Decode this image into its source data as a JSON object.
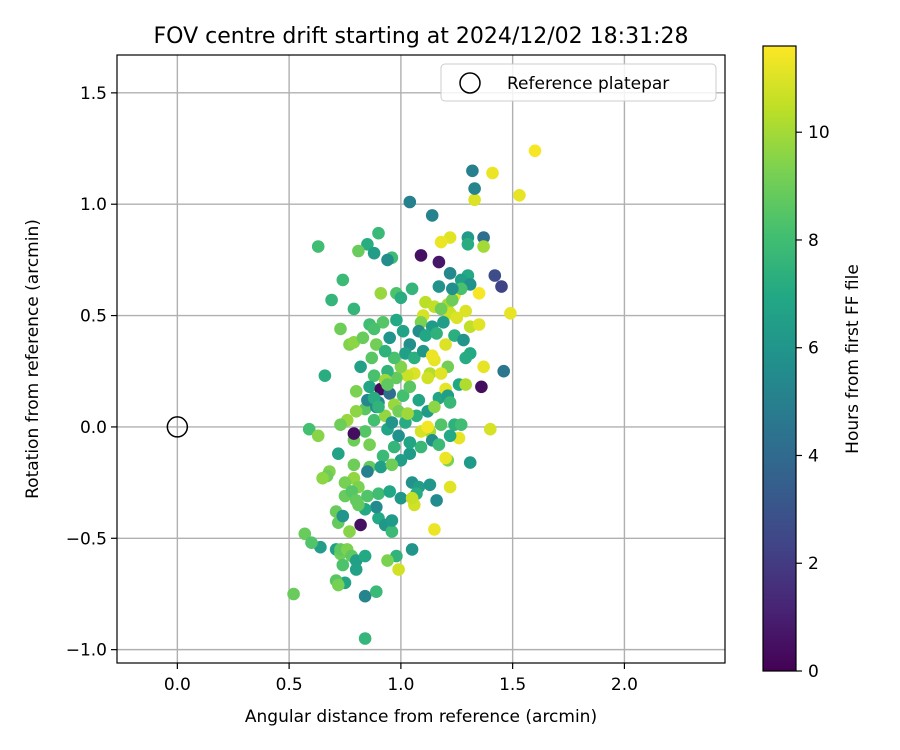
{
  "chart_data": {
    "type": "scatter",
    "title": "FOV centre drift starting at 2024/12/02 18:31:28",
    "xlabel": "Angular distance from reference (arcmin)",
    "ylabel": "Rotation from reference (arcmin)",
    "xlim": [
      -0.27,
      2.45
    ],
    "ylim": [
      -1.06,
      1.67
    ],
    "xticks": [
      0.0,
      0.5,
      1.0,
      1.5,
      2.0
    ],
    "xtick_labels": [
      "0.0",
      "0.5",
      "1.0",
      "1.5",
      "2.0"
    ],
    "yticks": [
      -1.0,
      -0.5,
      0.0,
      0.5,
      1.0,
      1.5
    ],
    "ytick_labels": [
      "−1.0",
      "−0.5",
      "0.0",
      "0.5",
      "1.0",
      "1.5"
    ],
    "grid": true,
    "legend": {
      "placement": "top-right",
      "entries": [
        "Reference platepar"
      ]
    },
    "reference_point": {
      "x": 0.0,
      "y": 0.0,
      "label": "Reference platepar"
    },
    "colorbar": {
      "label": "Hours from first FF file",
      "colormap": "viridis",
      "range": [
        0,
        11.6
      ],
      "ticks": [
        0,
        2,
        4,
        6,
        8,
        10
      ],
      "tick_labels": [
        "0",
        "2",
        "4",
        "6",
        "8",
        "10"
      ]
    },
    "series": [
      {
        "points": [
          [
            1.6,
            1.24,
            11.5
          ],
          [
            1.41,
            1.14,
            11.3
          ],
          [
            1.53,
            1.04,
            11.2
          ],
          [
            1.33,
            1.02,
            11.0
          ],
          [
            1.32,
            1.15,
            5.0
          ],
          [
            1.33,
            1.07,
            5.2
          ],
          [
            1.04,
            1.01,
            5.0
          ],
          [
            1.14,
            0.95,
            5.1
          ],
          [
            0.9,
            0.87,
            7.8
          ],
          [
            0.63,
            0.81,
            8.0
          ],
          [
            0.85,
            0.82,
            7.2
          ],
          [
            0.88,
            0.78,
            6.4
          ],
          [
            0.96,
            0.76,
            7.9
          ],
          [
            0.94,
            0.75,
            5.6
          ],
          [
            1.09,
            0.77,
            0.5
          ],
          [
            1.17,
            0.74,
            0.7
          ],
          [
            1.22,
            0.85,
            11.1
          ],
          [
            1.18,
            0.83,
            11.3
          ],
          [
            1.3,
            0.85,
            6.3
          ],
          [
            1.3,
            0.82,
            7.2
          ],
          [
            1.37,
            0.85,
            4.2
          ],
          [
            1.37,
            0.81,
            10.0
          ],
          [
            0.81,
            0.79,
            8.9
          ],
          [
            1.42,
            0.68,
            2.7
          ],
          [
            1.45,
            0.63,
            2.3
          ],
          [
            0.74,
            0.66,
            7.8
          ],
          [
            1.3,
            0.68,
            7.0
          ],
          [
            1.22,
            0.69,
            5.4
          ],
          [
            1.27,
            0.66,
            6.5
          ],
          [
            1.31,
            0.64,
            5.8
          ],
          [
            1.05,
            0.62,
            7.6
          ],
          [
            0.98,
            0.6,
            8.3
          ],
          [
            0.91,
            0.6,
            9.8
          ],
          [
            1.0,
            0.58,
            7.2
          ],
          [
            1.11,
            0.56,
            10.4
          ],
          [
            1.15,
            0.54,
            10.5
          ],
          [
            1.21,
            0.55,
            10.0
          ],
          [
            1.24,
            0.59,
            11.3
          ],
          [
            1.35,
            0.6,
            11.5
          ],
          [
            1.49,
            0.51,
            11.2
          ],
          [
            1.29,
            0.52,
            11.0
          ],
          [
            1.22,
            0.51,
            10.7
          ],
          [
            1.18,
            0.53,
            9.0
          ],
          [
            1.1,
            0.5,
            10.9
          ],
          [
            1.09,
            0.47,
            9.3
          ],
          [
            1.14,
            0.45,
            6.3
          ],
          [
            1.08,
            0.43,
            5.6
          ],
          [
            1.01,
            0.43,
            6.7
          ],
          [
            0.98,
            0.48,
            7.0
          ],
          [
            0.92,
            0.47,
            8.5
          ],
          [
            0.86,
            0.46,
            8.0
          ],
          [
            0.79,
            0.53,
            7.6
          ],
          [
            0.73,
            0.44,
            9.0
          ],
          [
            0.69,
            0.57,
            7.6
          ],
          [
            0.77,
            0.37,
            9.4
          ],
          [
            0.79,
            0.38,
            9.6
          ],
          [
            0.83,
            0.4,
            8.9
          ],
          [
            0.88,
            0.44,
            8.2
          ],
          [
            0.89,
            0.37,
            9.1
          ],
          [
            0.95,
            0.4,
            6.0
          ],
          [
            1.04,
            0.37,
            5.7
          ],
          [
            1.02,
            0.33,
            6.5
          ],
          [
            1.06,
            0.31,
            7.3
          ],
          [
            1.1,
            0.34,
            6.1
          ],
          [
            1.2,
            0.37,
            11.0
          ],
          [
            1.24,
            0.41,
            7.3
          ],
          [
            1.28,
            0.39,
            6.0
          ],
          [
            1.31,
            0.45,
            10.5
          ],
          [
            1.35,
            0.46,
            11.1
          ],
          [
            1.31,
            0.33,
            7.0
          ],
          [
            1.29,
            0.31,
            7.1
          ],
          [
            1.21,
            0.27,
            9.1
          ],
          [
            1.15,
            0.3,
            11.2
          ],
          [
            1.14,
            0.32,
            11.3
          ],
          [
            1.13,
            0.24,
            10.3
          ],
          [
            1.18,
            0.24,
            11.1
          ],
          [
            1.12,
            0.22,
            10.8
          ],
          [
            1.06,
            0.24,
            11.0
          ],
          [
            1.03,
            0.23,
            10.7
          ],
          [
            0.98,
            0.22,
            8.8
          ],
          [
            0.94,
            0.25,
            7.5
          ],
          [
            0.88,
            0.23,
            8.2
          ],
          [
            0.82,
            0.27,
            6.6
          ],
          [
            0.86,
            0.18,
            6.8
          ],
          [
            0.91,
            0.17,
            0.3
          ],
          [
            0.95,
            0.15,
            4.2
          ],
          [
            0.9,
            0.11,
            5.5
          ],
          [
            0.84,
            0.08,
            8.6
          ],
          [
            0.8,
            0.16,
            9.3
          ],
          [
            0.8,
            0.07,
            9.6
          ],
          [
            0.76,
            0.03,
            9.8
          ],
          [
            0.73,
            0.01,
            9.0
          ],
          [
            0.66,
            0.23,
            7.2
          ],
          [
            0.59,
            -0.01,
            8.1
          ],
          [
            0.63,
            -0.04,
            9.5
          ],
          [
            0.79,
            -0.06,
            9.0
          ],
          [
            0.84,
            -0.02,
            8.5
          ],
          [
            0.88,
            0.03,
            8.1
          ],
          [
            0.94,
            -0.01,
            6.8
          ],
          [
            0.99,
            -0.04,
            5.8
          ],
          [
            1.02,
            0.02,
            7.1
          ],
          [
            1.07,
            0.05,
            7.3
          ],
          [
            1.12,
            0.07,
            6.3
          ],
          [
            1.17,
            0.13,
            6.8
          ],
          [
            1.2,
            0.17,
            11.2
          ],
          [
            1.21,
            0.14,
            6.4
          ],
          [
            1.26,
            0.19,
            6.9
          ],
          [
            1.29,
            0.19,
            10.2
          ],
          [
            1.37,
            0.27,
            11.2
          ],
          [
            1.36,
            0.18,
            0.4
          ],
          [
            1.46,
            0.25,
            4.6
          ],
          [
            1.4,
            -0.01,
            10.9
          ],
          [
            1.26,
            -0.05,
            11.2
          ],
          [
            1.24,
            0.01,
            7.4
          ],
          [
            1.18,
            0.01,
            8.4
          ],
          [
            1.13,
            -0.02,
            10.1
          ],
          [
            1.14,
            -0.06,
            5.6
          ],
          [
            1.09,
            -0.09,
            7.7
          ],
          [
            1.04,
            -0.12,
            6.3
          ],
          [
            1.0,
            -0.15,
            6.4
          ],
          [
            0.97,
            -0.09,
            7.6
          ],
          [
            0.92,
            -0.13,
            7.8
          ],
          [
            0.86,
            -0.18,
            8.8
          ],
          [
            0.79,
            -0.17,
            9.0
          ],
          [
            0.72,
            -0.12,
            6.7
          ],
          [
            0.68,
            -0.2,
            9.4
          ],
          [
            0.67,
            -0.22,
            9.0
          ],
          [
            0.65,
            -0.23,
            9.6
          ],
          [
            0.79,
            -0.23,
            9.7
          ],
          [
            0.75,
            -0.25,
            9.2
          ],
          [
            0.81,
            -0.27,
            9.3
          ],
          [
            0.75,
            -0.31,
            8.9
          ],
          [
            0.78,
            -0.29,
            8.5
          ],
          [
            0.8,
            -0.33,
            8.8
          ],
          [
            0.85,
            -0.31,
            8.4
          ],
          [
            0.9,
            -0.3,
            8.0
          ],
          [
            0.95,
            -0.29,
            6.9
          ],
          [
            1.0,
            -0.32,
            6.1
          ],
          [
            1.05,
            -0.25,
            5.9
          ],
          [
            1.08,
            -0.27,
            6.4
          ],
          [
            1.13,
            -0.26,
            6.1
          ],
          [
            1.16,
            -0.33,
            5.5
          ],
          [
            1.07,
            -0.3,
            7.2
          ],
          [
            1.06,
            -0.35,
            10.8
          ],
          [
            1.05,
            -0.32,
            10.6
          ],
          [
            1.22,
            -0.27,
            11.1
          ],
          [
            1.21,
            -0.15,
            9.3
          ],
          [
            1.31,
            -0.16,
            6.3
          ],
          [
            1.2,
            -0.14,
            11.3
          ],
          [
            1.17,
            -0.08,
            7.8
          ],
          [
            0.72,
            -0.43,
            8.8
          ],
          [
            0.71,
            -0.38,
            8.9
          ],
          [
            0.74,
            -0.4,
            6.0
          ],
          [
            0.82,
            -0.44,
            0.5
          ],
          [
            0.9,
            -0.41,
            7.0
          ],
          [
            0.93,
            -0.44,
            6.1
          ],
          [
            0.96,
            -0.47,
            7.8
          ],
          [
            0.96,
            -0.42,
            6.3
          ],
          [
            0.89,
            -0.36,
            5.5
          ],
          [
            0.84,
            -0.37,
            7.0
          ],
          [
            0.81,
            -0.35,
            8.8
          ],
          [
            0.77,
            -0.47,
            9.5
          ],
          [
            0.71,
            -0.55,
            6.5
          ],
          [
            0.73,
            -0.57,
            9.0
          ],
          [
            0.73,
            -0.55,
            8.7
          ],
          [
            0.76,
            -0.55,
            9.3
          ],
          [
            0.78,
            -0.58,
            8.7
          ],
          [
            0.8,
            -0.6,
            6.5
          ],
          [
            0.84,
            -0.58,
            7.0
          ],
          [
            0.98,
            -0.58,
            7.5
          ],
          [
            0.99,
            -0.64,
            10.8
          ],
          [
            0.94,
            -0.6,
            9.3
          ],
          [
            1.05,
            -0.55,
            6.0
          ],
          [
            1.15,
            -0.46,
            11.3
          ],
          [
            0.64,
            -0.54,
            6.4
          ],
          [
            0.57,
            -0.48,
            8.9
          ],
          [
            0.6,
            -0.52,
            8.4
          ],
          [
            0.74,
            -0.62,
            8.3
          ],
          [
            0.8,
            -0.64,
            6.6
          ],
          [
            0.75,
            -0.7,
            6.8
          ],
          [
            0.71,
            -0.69,
            8.6
          ],
          [
            0.72,
            -0.71,
            9.2
          ],
          [
            0.84,
            -0.76,
            5.2
          ],
          [
            0.89,
            -0.74,
            7.8
          ],
          [
            0.52,
            -0.75,
            8.9
          ],
          [
            0.84,
            -0.95,
            7.6
          ],
          [
            0.79,
            -0.03,
            0.4
          ],
          [
            0.85,
            0.12,
            5.4
          ],
          [
            0.89,
            0.09,
            5.6
          ],
          [
            0.93,
            0.05,
            9.7
          ],
          [
            0.97,
            0.1,
            9.8
          ],
          [
            1.01,
            0.14,
            8.1
          ],
          [
            1.04,
            0.18,
            8.6
          ],
          [
            1.08,
            0.12,
            6.8
          ],
          [
            1.0,
            0.27,
            9.4
          ],
          [
            0.97,
            0.31,
            8.2
          ],
          [
            0.93,
            0.34,
            7.4
          ],
          [
            0.87,
            0.31,
            8.6
          ],
          [
            0.93,
            0.21,
            9.9
          ],
          [
            0.88,
            0.13,
            7.2
          ],
          [
            1.11,
            0.41,
            6.9
          ],
          [
            1.16,
            0.42,
            7.4
          ],
          [
            1.19,
            0.47,
            6.4
          ],
          [
            1.25,
            0.49,
            11.0
          ],
          [
            1.23,
            0.57,
            9.0
          ],
          [
            1.27,
            0.62,
            8.2
          ],
          [
            1.23,
            0.62,
            5.7
          ],
          [
            1.17,
            0.63,
            5.9
          ],
          [
            0.99,
            0.07,
            9.1
          ],
          [
            0.96,
            0.02,
            6.0
          ],
          [
            1.09,
            -0.02,
            10.9
          ],
          [
            1.12,
            0.0,
            11.4
          ],
          [
            1.04,
            -0.07,
            6.8
          ],
          [
            0.91,
            -0.18,
            6.5
          ],
          [
            0.85,
            -0.2,
            5.0
          ],
          [
            0.86,
            -0.08,
            9.2
          ],
          [
            1.03,
            0.06,
            9.9
          ],
          [
            0.96,
            -0.17,
            9.0
          ],
          [
            0.9,
            0.09,
            7.5
          ],
          [
            0.94,
            0.19,
            8.7
          ],
          [
            1.15,
            0.09,
            9.6
          ],
          [
            1.22,
            0.11,
            7.7
          ],
          [
            1.27,
            0.01,
            8.0
          ],
          [
            1.22,
            -0.04,
            7.0
          ]
        ]
      }
    ]
  }
}
